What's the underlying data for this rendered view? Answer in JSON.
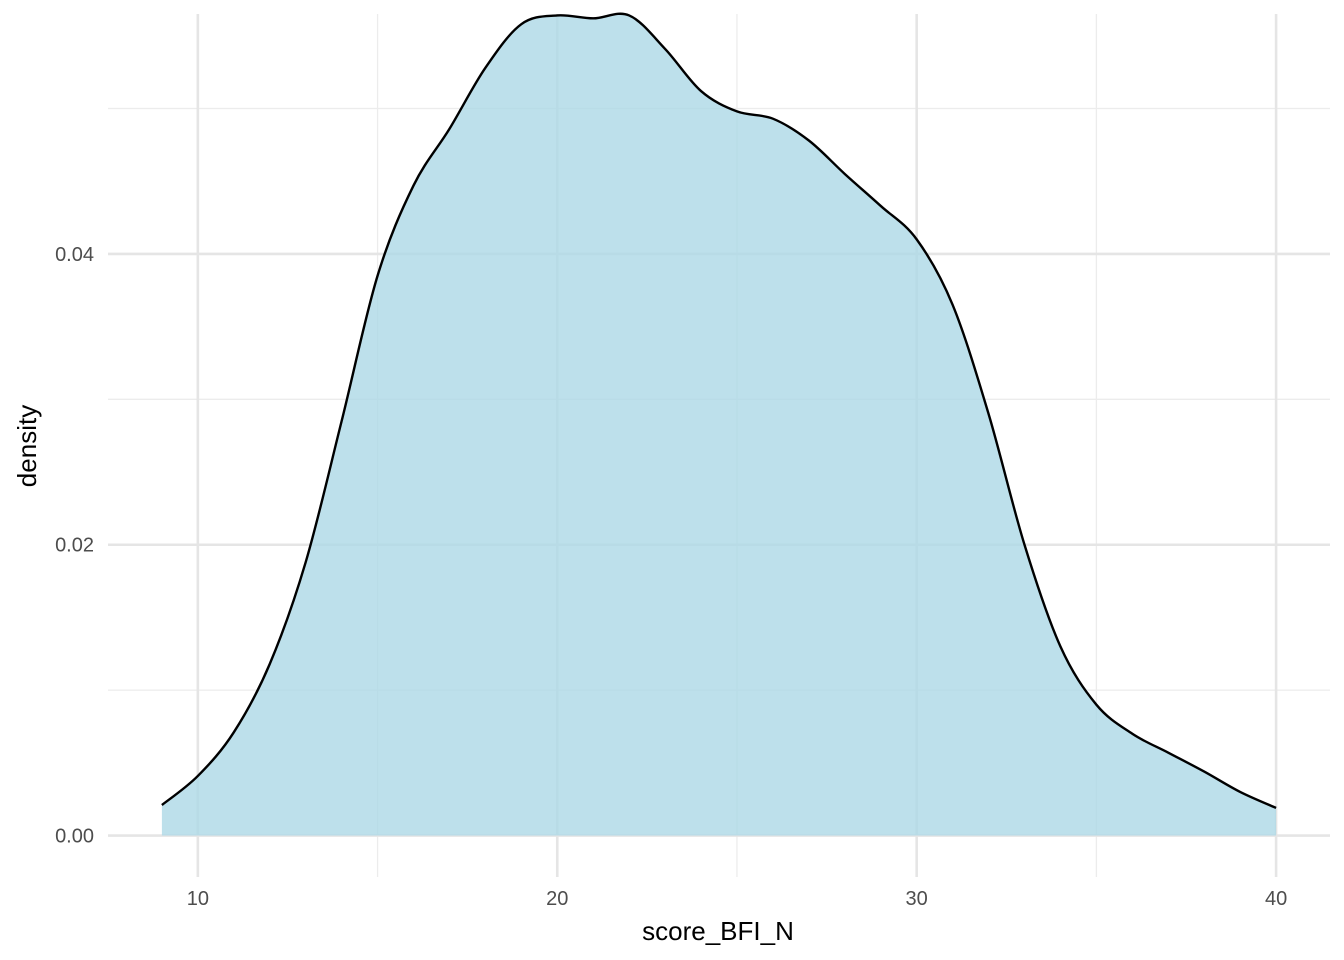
{
  "chart_data": {
    "type": "area",
    "xlabel": "score_BFI_N",
    "ylabel": "density",
    "xlim": [
      7.5,
      41.5
    ],
    "ylim": [
      -0.00285,
      0.0565
    ],
    "x_ticks": [
      10,
      20,
      30,
      40
    ],
    "x_tick_labels": [
      "10",
      "20",
      "30",
      "40"
    ],
    "x_minor_ticks": [
      15,
      25,
      35
    ],
    "y_ticks": [
      0.0,
      0.02,
      0.04
    ],
    "y_tick_labels": [
      "0.00",
      "0.02",
      "0.04"
    ],
    "y_minor_ticks": [
      0.01,
      0.03,
      0.05
    ],
    "grid": true,
    "legend": "none",
    "fill_color": "#add8e6",
    "fill_opacity": 0.8,
    "line_color": "#000000",
    "series": [
      {
        "x": [
          9,
          10,
          11,
          12,
          13,
          14,
          15,
          16,
          17,
          18,
          19,
          20,
          21,
          22,
          23,
          24,
          25,
          26,
          27,
          28,
          29,
          30,
          31,
          32,
          33,
          34,
          35,
          36,
          37,
          38,
          39,
          40
        ],
        "y": [
          0.0021,
          0.0041,
          0.0071,
          0.0118,
          0.0188,
          0.0285,
          0.0385,
          0.0447,
          0.0486,
          0.0528,
          0.0558,
          0.0564,
          0.0562,
          0.0564,
          0.0541,
          0.0512,
          0.0498,
          0.0493,
          0.0478,
          0.0455,
          0.0433,
          0.041,
          0.0365,
          0.029,
          0.02,
          0.013,
          0.009,
          0.007,
          0.0057,
          0.0044,
          0.003,
          0.0019
        ]
      }
    ]
  }
}
